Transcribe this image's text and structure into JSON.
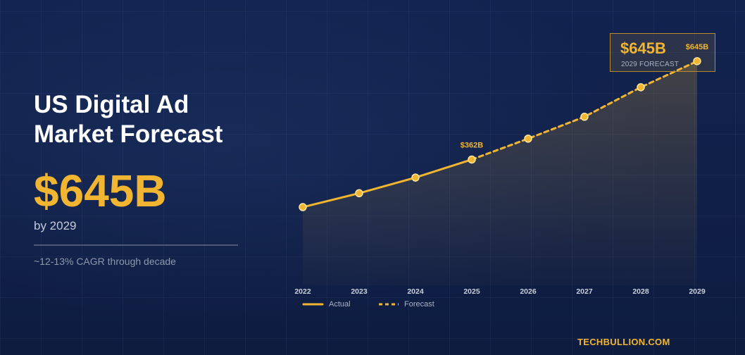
{
  "headline": "US Digital Ad Market Forecast",
  "big_value": "$645B",
  "by_year": "by 2029",
  "cagr": "~12-13% CAGR through decade",
  "callout": {
    "value": "$645B",
    "label": "2029 FORECAST"
  },
  "brand": "TECHBULLION.COM",
  "colors": {
    "accent": "#f2b531",
    "background": "#0f1e42",
    "text": "#ffffff",
    "muted": "#8e99ad"
  },
  "chart_data": {
    "type": "line",
    "title": "",
    "xlabel": "",
    "ylabel": "",
    "x": [
      "2022",
      "2023",
      "2024",
      "2025",
      "2026",
      "2027",
      "2028",
      "2029"
    ],
    "ylim": [
      0,
      740
    ],
    "grid": false,
    "legend_position": "bottom-left",
    "series": [
      {
        "name": "Actual",
        "style": "solid",
        "x": [
          "2022",
          "2023",
          "2024",
          "2025"
        ],
        "values": [
          225,
          265,
          310,
          362
        ]
      },
      {
        "name": "Forecast",
        "style": "dashed",
        "x": [
          "2025",
          "2026",
          "2027",
          "2028",
          "2029"
        ],
        "values": [
          362,
          422,
          485,
          570,
          645
        ]
      }
    ],
    "data_labels": [
      {
        "x": "2025",
        "text": "$362B"
      },
      {
        "x": "2029",
        "text": "$645B"
      }
    ]
  }
}
